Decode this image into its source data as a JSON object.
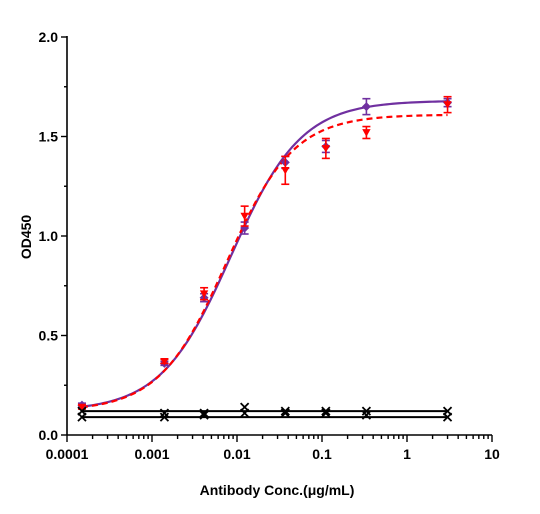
{
  "chart_data": {
    "type": "scatter",
    "title": "",
    "xlabel": "Antibody Conc.(μg/mL)",
    "ylabel": "OD450",
    "xscale": "log",
    "xlim": [
      0.0001,
      10
    ],
    "ylim": [
      0,
      2.0
    ],
    "xticks": [
      0.0001,
      0.001,
      0.01,
      0.1,
      1,
      10
    ],
    "xtick_labels": [
      "0.0001",
      "0.001",
      "0.01",
      "0.1",
      "1",
      "10"
    ],
    "yticks": [
      0,
      0.5,
      1.0,
      1.5,
      2.0
    ],
    "ytick_labels": [
      "0.0",
      "0.5",
      "1.0",
      "1.5",
      "2.0"
    ],
    "grid": false,
    "series": [
      {
        "marker": "diamond",
        "color": "#7030A0",
        "line_style": "solid",
        "x": [
          0.00015,
          0.0014,
          0.0041,
          0.0123,
          0.037,
          0.111,
          0.333,
          3.0
        ],
        "y": [
          0.15,
          0.36,
          0.69,
          1.04,
          1.37,
          1.45,
          1.65,
          1.67
        ],
        "err": [
          0.01,
          0.01,
          0.02,
          0.03,
          0.03,
          0.03,
          0.04,
          0.02
        ],
        "fit": {
          "bottom": 0.12,
          "top": 1.68,
          "ec50": 0.0085,
          "hill": 1.05
        }
      },
      {
        "marker": "triangle",
        "color": "#FF0000",
        "line_style": "dashed",
        "x": [
          0.00015,
          0.0014,
          0.0041,
          0.0123,
          0.037,
          0.111,
          0.333,
          3.0
        ],
        "y": [
          0.14,
          0.37,
          0.71,
          1.1,
          1.33,
          1.44,
          1.52,
          1.66
        ],
        "err": [
          0.01,
          0.01,
          0.03,
          0.05,
          0.07,
          0.05,
          0.03,
          0.04
        ],
        "fit": {
          "bottom": 0.12,
          "top": 1.61,
          "ec50": 0.0075,
          "hill": 1.1
        }
      },
      {
        "marker": "x",
        "color": "#000000",
        "line_style": "solid",
        "x": [
          0.00015,
          0.0014,
          0.0041,
          0.0123,
          0.037,
          0.111,
          0.333,
          3.0
        ],
        "y": [
          0.09,
          0.09,
          0.1,
          0.11,
          0.11,
          0.11,
          0.1,
          0.09
        ],
        "err": [
          0,
          0,
          0,
          0,
          0,
          0,
          0,
          0
        ],
        "fit": {
          "linear": true
        }
      },
      {
        "marker": "x",
        "color": "#000000",
        "line_style": "solid",
        "x": [
          0.00015,
          0.0014,
          0.0041,
          0.0123,
          0.037,
          0.111,
          0.333,
          3.0
        ],
        "y": [
          0.12,
          0.11,
          0.11,
          0.14,
          0.12,
          0.12,
          0.12,
          0.12
        ],
        "err": [
          0,
          0,
          0,
          0,
          0,
          0,
          0,
          0
        ],
        "fit": {
          "linear": true
        }
      }
    ]
  }
}
